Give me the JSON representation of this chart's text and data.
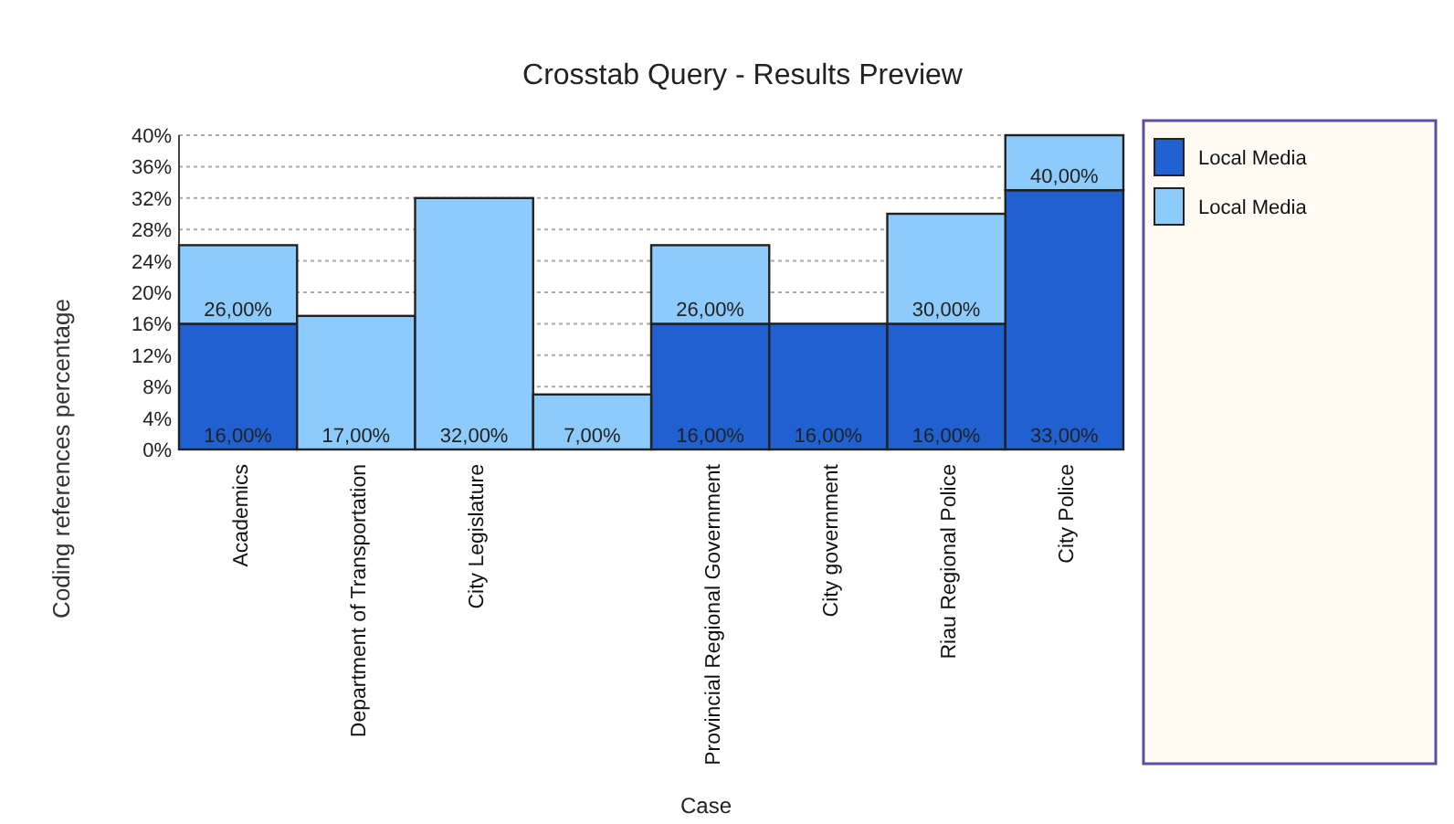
{
  "chart_data": {
    "type": "bar",
    "title": "Crosstab Query - Results Preview",
    "xlabel": "Case",
    "ylabel": "Coding references percentage",
    "categories": [
      "Academics",
      "Department of Transportation",
      "City Legislature",
      null,
      "Provincial Regional Government",
      "City government",
      "Riau Regional Police",
      "City Police"
    ],
    "series": [
      {
        "name": "Local Media",
        "color": "#2060d0",
        "values": [
          16,
          null,
          null,
          null,
          16,
          16,
          16,
          33
        ],
        "value_labels": [
          "16,00%",
          null,
          null,
          null,
          "16,00%",
          "16,00%",
          "16,00%",
          "33,00%"
        ]
      },
      {
        "name": "Local Media",
        "color": "#8ccbfc",
        "values": [
          10,
          17,
          32,
          7,
          10,
          null,
          14,
          7
        ],
        "value_labels": [
          null,
          "17,00%",
          "32,00%",
          "7,00%",
          null,
          null,
          null,
          null
        ]
      }
    ],
    "stacked": true,
    "totals": [
      "26,00%",
      null,
      null,
      null,
      "26,00%",
      null,
      "30,00%",
      "40,00%"
    ],
    "ylim": [
      0,
      40
    ],
    "yticks": [
      {
        "value": 0,
        "label": "0%"
      },
      {
        "value": 4,
        "label": "4%"
      },
      {
        "value": 8,
        "label": "8%"
      },
      {
        "value": 12,
        "label": "12%"
      },
      {
        "value": 16,
        "label": "16%"
      },
      {
        "value": 20,
        "label": "20%"
      },
      {
        "value": 24,
        "label": "24%"
      },
      {
        "value": 28,
        "label": "28%"
      },
      {
        "value": 32,
        "label": "32%"
      },
      {
        "value": 36,
        "label": "36%"
      },
      {
        "value": 40,
        "label": "40%"
      }
    ],
    "grid": "y",
    "legend": "right"
  }
}
